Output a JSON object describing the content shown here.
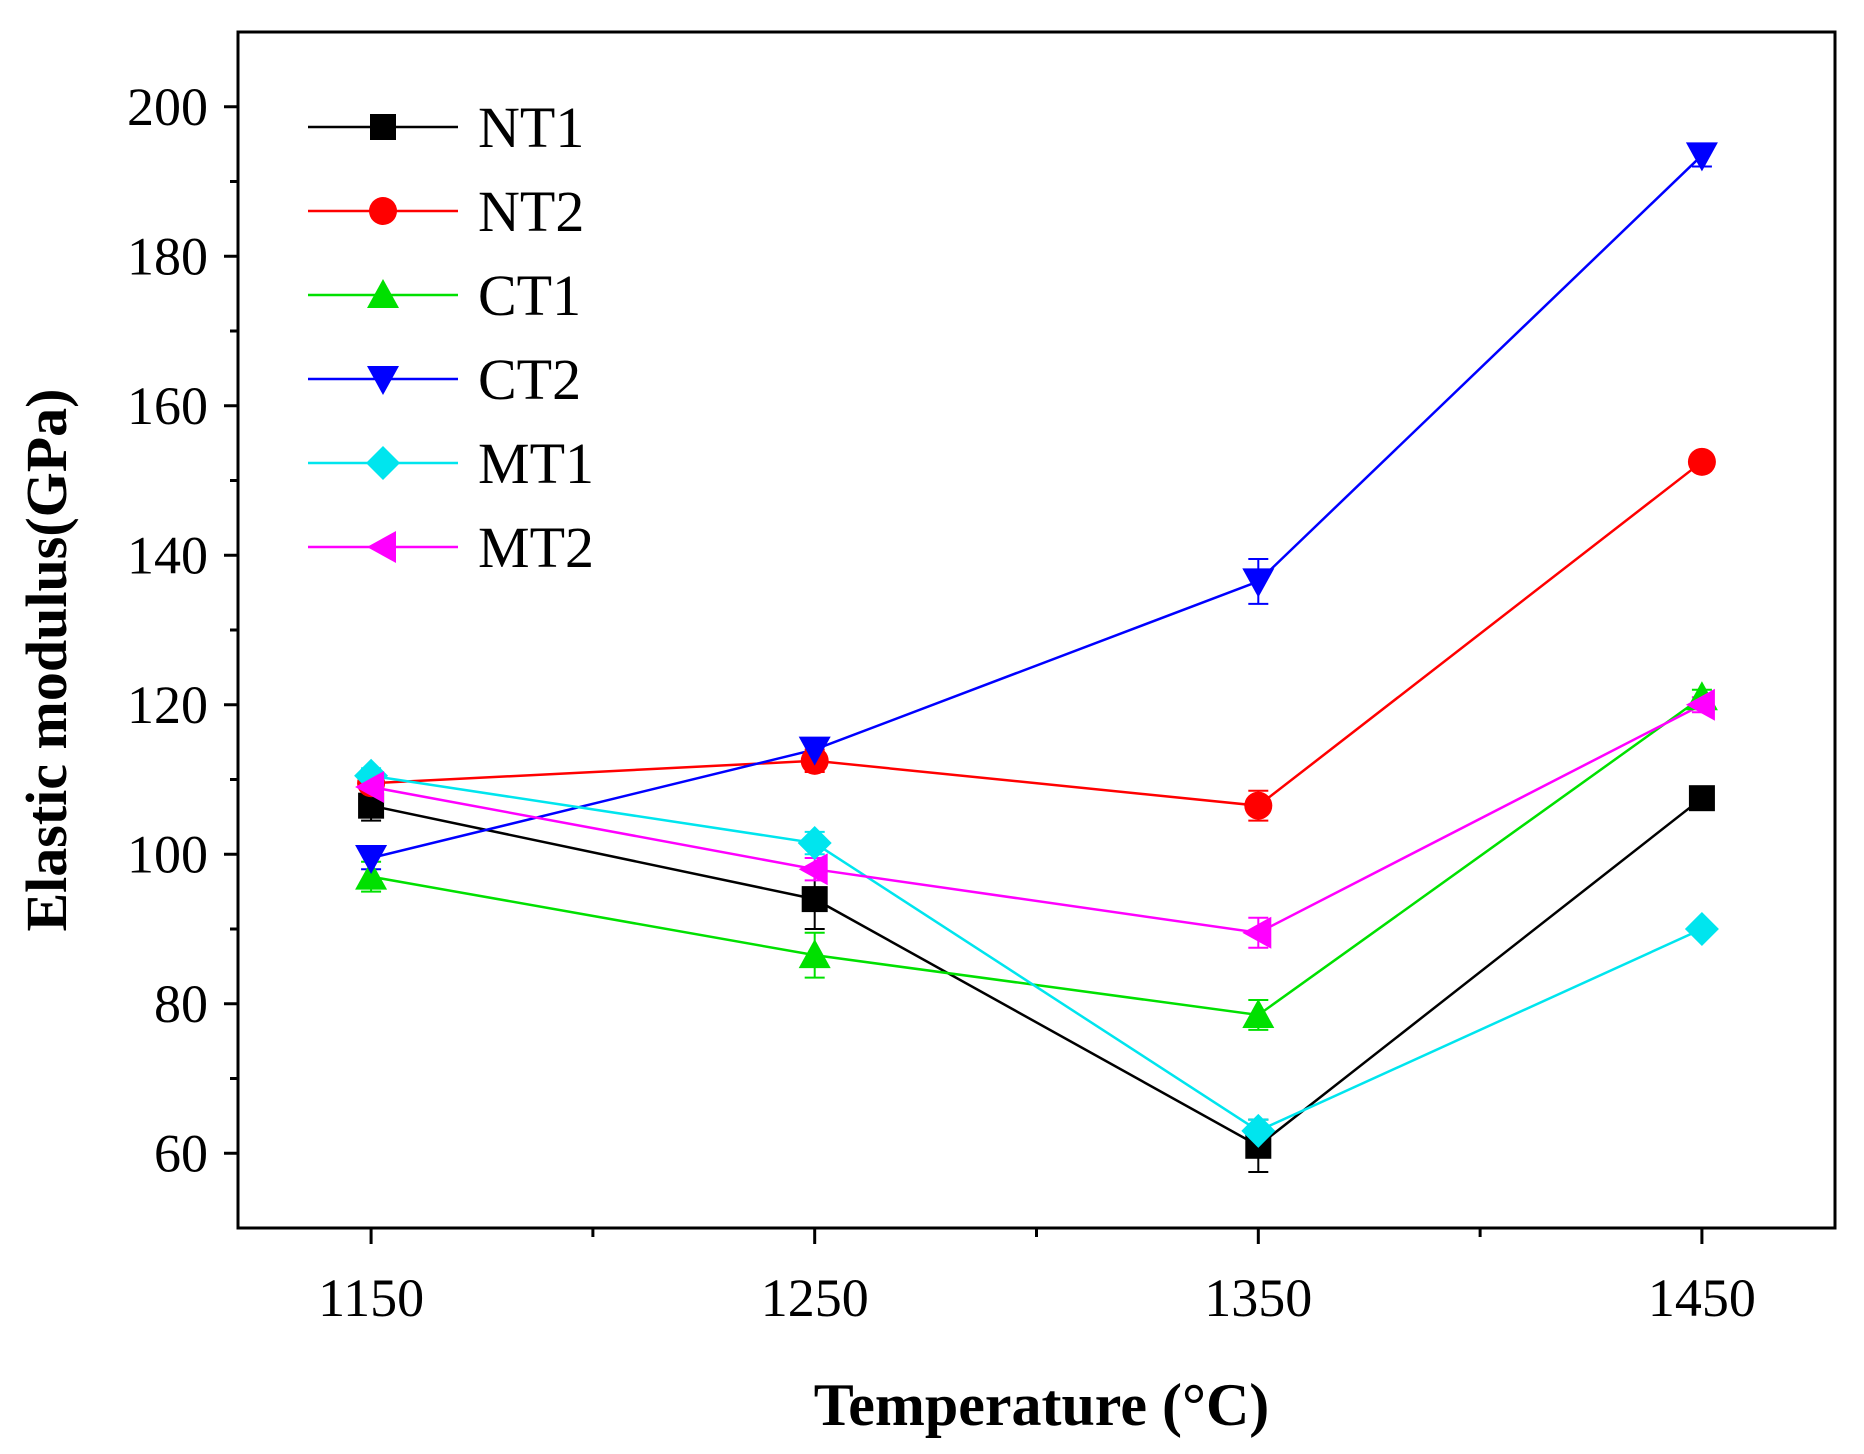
{
  "chart_data": {
    "type": "line",
    "title": "",
    "xlabel": "Temperature (°C)",
    "ylabel": "Elastic modulus(GPa)",
    "x": [
      1150,
      1250,
      1350,
      1450
    ],
    "xticks": [
      "1150",
      "1250",
      "1350",
      "1450"
    ],
    "xlim": [
      1120,
      1480
    ],
    "ylim": [
      50,
      210
    ],
    "yticks": [
      60,
      80,
      100,
      120,
      140,
      160,
      180,
      200
    ],
    "ytick_labels": [
      "60",
      "80",
      "100",
      "120",
      "140",
      "160",
      "180",
      "200"
    ],
    "legend_position": "top-left",
    "grid": false,
    "series": [
      {
        "name": "NT1",
        "color": "#000000",
        "marker": "square",
        "values": [
          106.5,
          94.0,
          61.0,
          107.5
        ],
        "errors": [
          2.0,
          4.0,
          3.5,
          1.0
        ]
      },
      {
        "name": "NT2",
        "color": "#ff0000",
        "marker": "circle",
        "values": [
          109.5,
          112.5,
          106.5,
          152.5
        ],
        "errors": [
          1.0,
          1.5,
          2.0,
          1.0
        ]
      },
      {
        "name": "CT1",
        "color": "#00e000",
        "marker": "triangle-up",
        "values": [
          97.0,
          86.5,
          78.5,
          121.0
        ],
        "errors": [
          2.0,
          3.0,
          2.0,
          1.0
        ]
      },
      {
        "name": "CT2",
        "color": "#0000ff",
        "marker": "triangle-down",
        "values": [
          99.5,
          114.0,
          136.5,
          193.5
        ],
        "errors": [
          1.5,
          1.0,
          3.0,
          1.5
        ]
      },
      {
        "name": "MT1",
        "color": "#00e5ee",
        "marker": "diamond",
        "values": [
          110.5,
          101.5,
          63.0,
          90.0
        ],
        "errors": [
          1.0,
          1.5,
          1.5,
          0.5
        ]
      },
      {
        "name": "MT2",
        "color": "#ff00ff",
        "marker": "triangle-left",
        "values": [
          109.0,
          98.0,
          89.5,
          120.0
        ],
        "errors": [
          1.0,
          1.5,
          2.0,
          1.0
        ]
      }
    ]
  }
}
